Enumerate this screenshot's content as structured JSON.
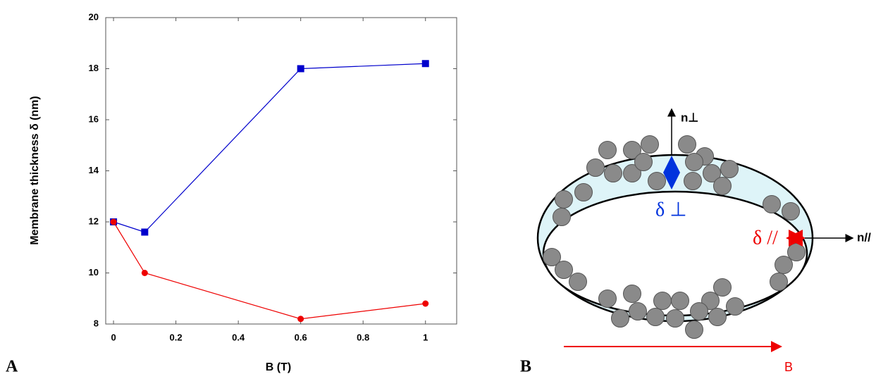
{
  "chart_data": {
    "type": "line",
    "xlabel": "B (T)",
    "ylabel": "Membrane thickness δ (nm)",
    "xlim": [
      -0.025,
      1.1
    ],
    "xticks": [
      0,
      0.2,
      0.4,
      0.6,
      0.8,
      1
    ],
    "ylim": [
      8,
      20
    ],
    "yticks": [
      8,
      10,
      12,
      14,
      16,
      18,
      20
    ],
    "x": [
      0,
      0.1,
      0.6,
      1
    ],
    "series": [
      {
        "color": "#0000cc",
        "marker": "square",
        "values": [
          12,
          11.6,
          18,
          18.2
        ]
      },
      {
        "color": "#ee0000",
        "marker": "circle",
        "values": [
          12,
          10,
          8.2,
          8.8
        ]
      }
    ]
  },
  "panels": {
    "left": "A",
    "right": "B"
  },
  "diagram": {
    "n_perp": "n⊥",
    "delta_perp": "δ ⊥",
    "delta_par": "δ //",
    "n_par": "n//",
    "field": "B"
  }
}
